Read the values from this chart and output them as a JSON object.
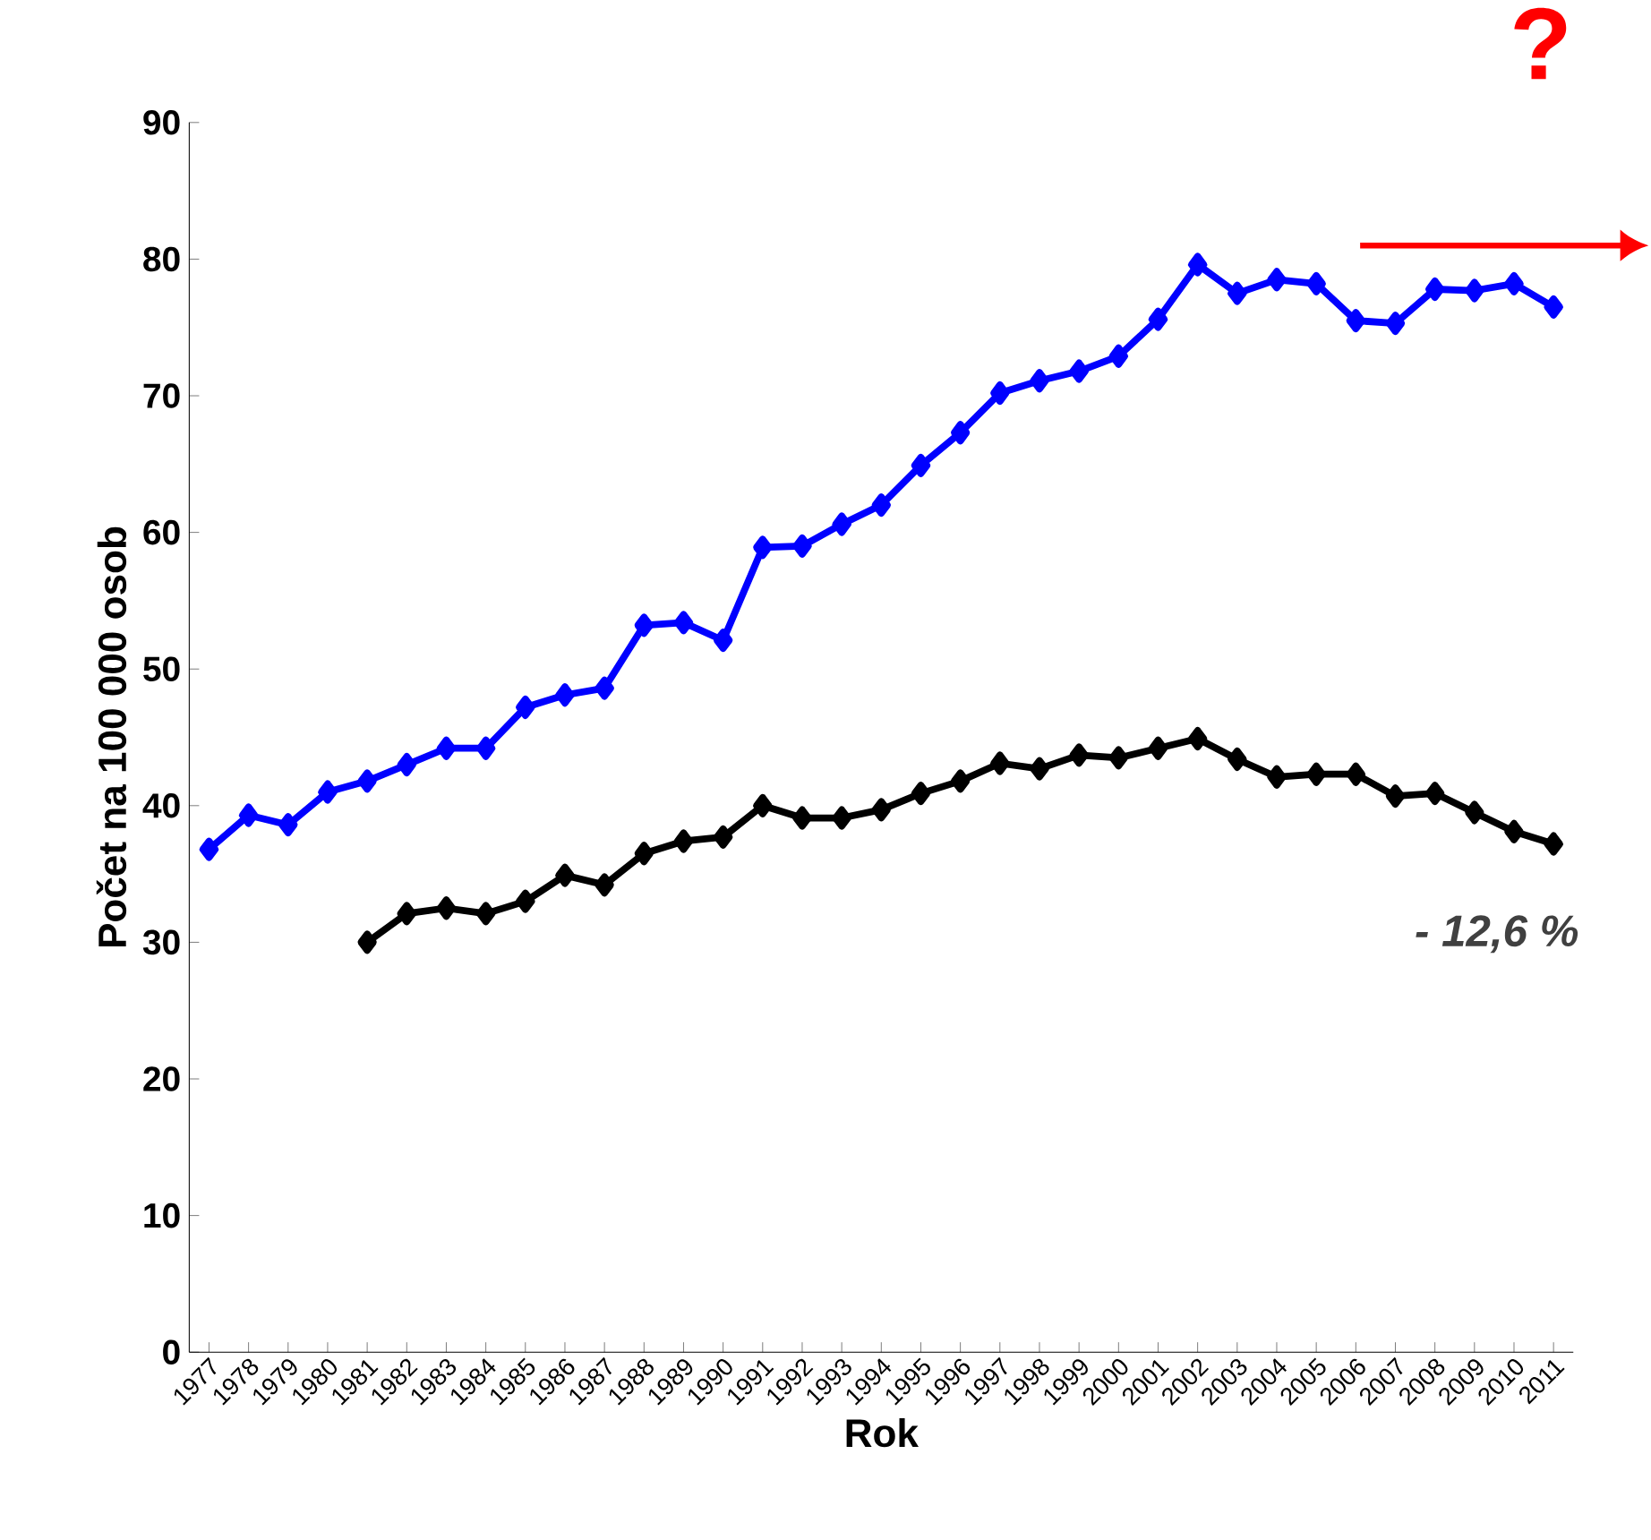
{
  "chart_data": {
    "type": "line",
    "xlabel": "Rok",
    "ylabel": "Počet na 100 000 osob",
    "categories": [
      "1977",
      "1978",
      "1979",
      "1980",
      "1981",
      "1982",
      "1983",
      "1984",
      "1985",
      "1986",
      "1987",
      "1988",
      "1989",
      "1990",
      "1991",
      "1992",
      "1993",
      "1994",
      "1995",
      "1996",
      "1997",
      "1998",
      "1999",
      "2000",
      "2001",
      "2002",
      "2003",
      "2004",
      "2005",
      "2006",
      "2007",
      "2008",
      "2009",
      "2010",
      "2011"
    ],
    "series": [
      {
        "color": "#0000ff",
        "values": [
          36.8,
          39.3,
          38.6,
          41,
          41.8,
          43,
          44.2,
          44.2,
          47.2,
          48.1,
          48.6,
          53.2,
          53.4,
          52.1,
          58.9,
          59,
          60.6,
          62,
          64.9,
          67.3,
          70.2,
          71.1,
          71.8,
          72.9,
          75.6,
          79.6,
          77.5,
          78.5,
          78.2,
          75.5,
          75.3,
          77.8,
          77.7,
          78.2,
          76.5
        ]
      },
      {
        "color": "#000000",
        "values": [
          null,
          null,
          null,
          null,
          30.0,
          32.1,
          32.5,
          32.1,
          33,
          34.9,
          34.2,
          36.5,
          37.4,
          37.7,
          40,
          39.1,
          39.1,
          39.7,
          40.9,
          41.8,
          43.1,
          42.7,
          43.7,
          43.5,
          44.2,
          44.9,
          43.4,
          42.1,
          42.3,
          42.3,
          40.7,
          40.9,
          39.5,
          38.1,
          37.2
        ]
      }
    ],
    "ylim": [
      0,
      90
    ],
    "yticks": [
      0,
      10,
      20,
      30,
      40,
      50,
      60,
      70,
      80,
      90
    ],
    "marker": "diamond",
    "line_style": "solid",
    "annotations": [
      "- 12,6 %",
      "?"
    ]
  }
}
